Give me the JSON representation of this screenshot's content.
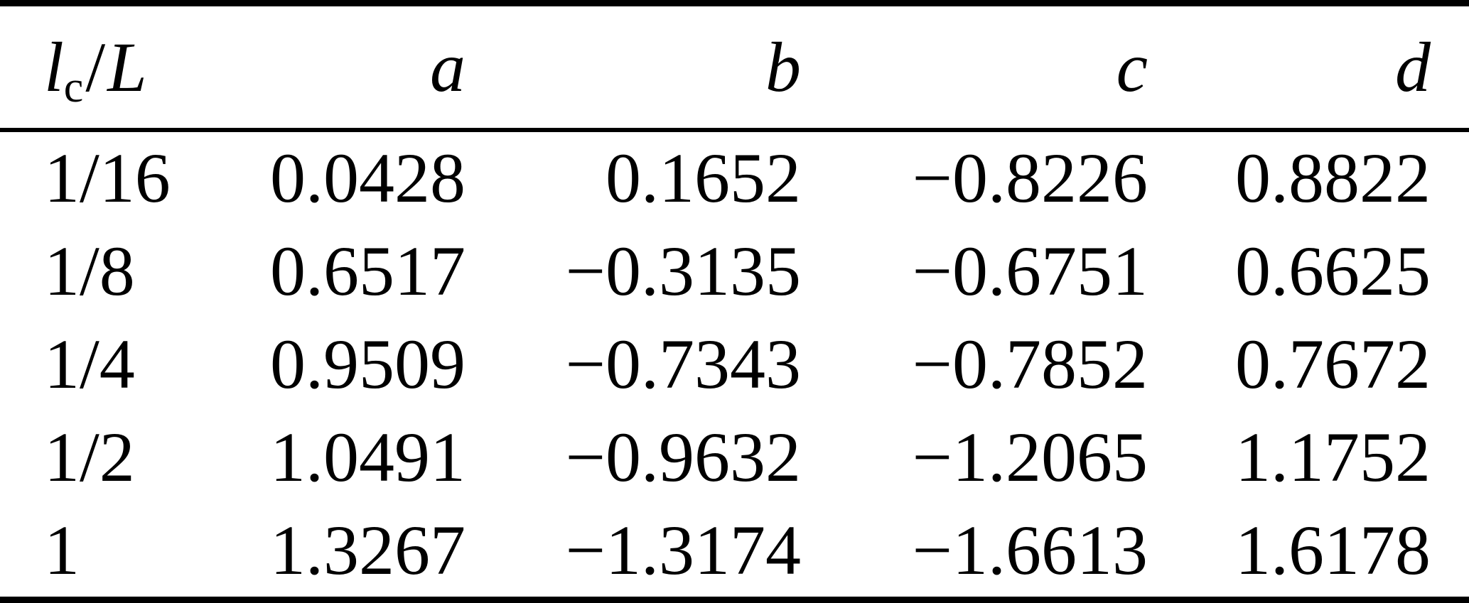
{
  "colors": {
    "background": "#ffffff",
    "text": "#000000",
    "rule": "#000000"
  },
  "table": {
    "header": {
      "ratio": {
        "base": "l",
        "sub": "c",
        "sep": "/",
        "denom": "L"
      },
      "columns": [
        "a",
        "b",
        "c",
        "d"
      ]
    },
    "rows": [
      {
        "ratio": "1/16",
        "a": "0.0428",
        "b": "0.1652",
        "c": "−0.8226",
        "d": "0.8822"
      },
      {
        "ratio": "1/8",
        "a": "0.6517",
        "b": "−0.3135",
        "c": "−0.6751",
        "d": "0.6625"
      },
      {
        "ratio": "1/4",
        "a": "0.9509",
        "b": "−0.7343",
        "c": "−0.7852",
        "d": "0.7672"
      },
      {
        "ratio": "1/2",
        "a": "1.0491",
        "b": "−0.9632",
        "c": "−1.2065",
        "d": "1.1752"
      },
      {
        "ratio": "1",
        "a": "1.3267",
        "b": "−1.3174",
        "c": "−1.6613",
        "d": "1.6178"
      }
    ]
  },
  "chart_data": {
    "type": "table",
    "title": "",
    "columns": [
      "lc/L",
      "a",
      "b",
      "c",
      "d"
    ],
    "rows": [
      [
        "1/16",
        0.0428,
        0.1652,
        -0.8226,
        0.8822
      ],
      [
        "1/8",
        0.6517,
        -0.3135,
        -0.6751,
        0.6625
      ],
      [
        "1/4",
        0.9509,
        -0.7343,
        -0.7852,
        0.7672
      ],
      [
        "1/2",
        1.0491,
        -0.9632,
        -1.2065,
        1.1752
      ],
      [
        "1",
        1.3267,
        -1.3174,
        -1.6613,
        1.6178
      ]
    ]
  }
}
